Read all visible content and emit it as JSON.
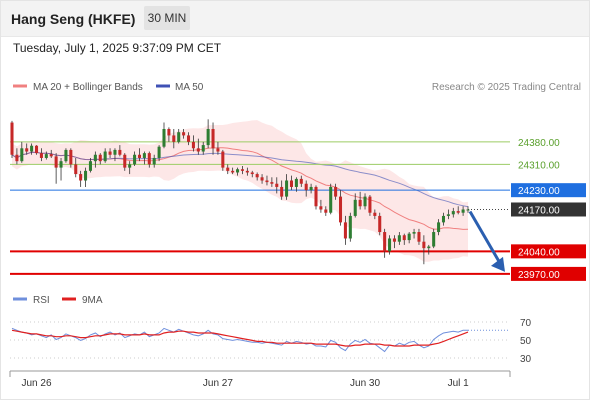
{
  "header": {
    "title": "Hang Seng (HKFE)",
    "interval": "30 MIN",
    "timestamp": "Tuesday, July 1, 2025 9:37:09 PM CET"
  },
  "legend": {
    "ma20_label": "MA 20 + Bollinger Bands",
    "ma50_label": "MA 50",
    "credit": "Research © 2025 Trading Central",
    "rsi_label": "RSI",
    "rsi_ma_label": "9MA"
  },
  "colors": {
    "up_candle": "#2e7d32",
    "down_candle": "#c62828",
    "ma20": "#f08080",
    "ma50": "#3f51b5",
    "band_fill": "#fde3e3",
    "support": "#e00000",
    "pivot": "#1f6fe0",
    "resistance": "#9ccc65",
    "last_price_bg": "#333333",
    "arrow": "#2b5fb0",
    "rsi": "#6f8fdc",
    "rsi_ma": "#e02020"
  },
  "chart_data": {
    "type": "candlestick",
    "x_labels": [
      "Jun 26",
      "Jun 27",
      "Jun 30",
      "Jul 1"
    ],
    "y_range": [
      23920,
      24510
    ],
    "grid": false,
    "legend_position": "top-left",
    "levels": [
      {
        "value": 24380,
        "label": "24380.00",
        "kind": "resistance"
      },
      {
        "value": 24310,
        "label": "24310.00",
        "kind": "resistance"
      },
      {
        "value": 24230,
        "label": "24230.00",
        "kind": "pivot"
      },
      {
        "value": 24170,
        "label": "24170.00",
        "kind": "last"
      },
      {
        "value": 24040,
        "label": "24040.00",
        "kind": "support"
      },
      {
        "value": 23970,
        "label": "23970.00",
        "kind": "support"
      }
    ],
    "ohlc": [
      [
        24440,
        24445,
        24330,
        24340
      ],
      [
        24340,
        24360,
        24310,
        24320
      ],
      [
        24320,
        24380,
        24315,
        24360
      ],
      [
        24360,
        24375,
        24340,
        24350
      ],
      [
        24350,
        24375,
        24340,
        24368
      ],
      [
        24368,
        24370,
        24340,
        24345
      ],
      [
        24345,
        24360,
        24320,
        24330
      ],
      [
        24330,
        24350,
        24325,
        24342
      ],
      [
        24342,
        24355,
        24330,
        24335
      ],
      [
        24335,
        24345,
        24250,
        24300
      ],
      [
        24300,
        24330,
        24260,
        24320
      ],
      [
        24320,
        24360,
        24315,
        24355
      ],
      [
        24355,
        24360,
        24300,
        24310
      ],
      [
        24310,
        24330,
        24270,
        24280
      ],
      [
        24280,
        24290,
        24240,
        24260
      ],
      [
        24260,
        24300,
        24240,
        24290
      ],
      [
        24290,
        24330,
        24285,
        24320
      ],
      [
        24320,
        24350,
        24300,
        24340
      ],
      [
        24340,
        24345,
        24310,
        24320
      ],
      [
        24320,
        24360,
        24315,
        24350
      ],
      [
        24350,
        24360,
        24330,
        24340
      ],
      [
        24340,
        24360,
        24320,
        24355
      ],
      [
        24355,
        24370,
        24335,
        24340
      ],
      [
        24340,
        24345,
        24290,
        24300
      ],
      [
        24300,
        24320,
        24280,
        24310
      ],
      [
        24310,
        24350,
        24305,
        24340
      ],
      [
        24340,
        24360,
        24320,
        24330
      ],
      [
        24330,
        24350,
        24310,
        24345
      ],
      [
        24345,
        24350,
        24300,
        24310
      ],
      [
        24310,
        24340,
        24300,
        24330
      ],
      [
        24330,
        24370,
        24320,
        24365
      ],
      [
        24365,
        24440,
        24360,
        24420
      ],
      [
        24420,
        24425,
        24380,
        24400
      ],
      [
        24400,
        24420,
        24360,
        24380
      ],
      [
        24380,
        24420,
        24375,
        24410
      ],
      [
        24410,
        24420,
        24390,
        24400
      ],
      [
        24400,
        24410,
        24370,
        24380
      ],
      [
        24380,
        24400,
        24350,
        24360
      ],
      [
        24360,
        24390,
        24340,
        24350
      ],
      [
        24350,
        24380,
        24340,
        24370
      ],
      [
        24370,
        24450,
        24360,
        24420
      ],
      [
        24420,
        24440,
        24340,
        24360
      ],
      [
        24360,
        24380,
        24340,
        24350
      ],
      [
        24350,
        24355,
        24290,
        24300
      ],
      [
        24300,
        24310,
        24280,
        24290
      ],
      [
        24290,
        24300,
        24280,
        24285
      ],
      [
        24285,
        24300,
        24275,
        24295
      ],
      [
        24295,
        24305,
        24280,
        24290
      ],
      [
        24290,
        24300,
        24275,
        24285
      ],
      [
        24285,
        24290,
        24270,
        24280
      ],
      [
        24280,
        24285,
        24260,
        24270
      ],
      [
        24270,
        24280,
        24250,
        24260
      ],
      [
        24260,
        24275,
        24245,
        24255
      ],
      [
        24255,
        24270,
        24240,
        24250
      ],
      [
        24250,
        24270,
        24220,
        24240
      ],
      [
        24240,
        24260,
        24200,
        24210
      ],
      [
        24210,
        24280,
        24200,
        24260
      ],
      [
        24260,
        24275,
        24230,
        24240
      ],
      [
        24240,
        24270,
        24225,
        24265
      ],
      [
        24265,
        24275,
        24240,
        24250
      ],
      [
        24250,
        24260,
        24210,
        24230
      ],
      [
        24230,
        24250,
        24220,
        24240
      ],
      [
        24240,
        24245,
        24170,
        24180
      ],
      [
        24180,
        24200,
        24160,
        24170
      ],
      [
        24170,
        24180,
        24150,
        24160
      ],
      [
        24160,
        24250,
        24155,
        24240
      ],
      [
        24240,
        24250,
        24200,
        24210
      ],
      [
        24210,
        24230,
        24120,
        24130
      ],
      [
        24130,
        24150,
        24060,
        24080
      ],
      [
        24080,
        24160,
        24070,
        24150
      ],
      [
        24150,
        24220,
        24145,
        24200
      ],
      [
        24200,
        24225,
        24170,
        24180
      ],
      [
        24180,
        24220,
        24170,
        24210
      ],
      [
        24210,
        24215,
        24150,
        24160
      ],
      [
        24160,
        24170,
        24140,
        24150
      ],
      [
        24150,
        24160,
        24090,
        24100
      ],
      [
        24100,
        24110,
        24020,
        24040
      ],
      [
        24040,
        24090,
        24030,
        24080
      ],
      [
        24080,
        24090,
        24050,
        24070
      ],
      [
        24070,
        24100,
        24060,
        24090
      ],
      [
        24090,
        24095,
        24060,
        24075
      ],
      [
        24075,
        24100,
        24065,
        24095
      ],
      [
        24095,
        24110,
        24080,
        24100
      ],
      [
        24100,
        24110,
        24060,
        24070
      ],
      [
        24070,
        24090,
        24000,
        24050
      ],
      [
        24050,
        24060,
        24030,
        24055
      ],
      [
        24055,
        24110,
        24050,
        24100
      ],
      [
        24100,
        24140,
        24090,
        24130
      ],
      [
        24130,
        24160,
        24120,
        24150
      ],
      [
        24150,
        24170,
        24140,
        24155
      ],
      [
        24155,
        24175,
        24145,
        24165
      ],
      [
        24165,
        24180,
        24155,
        24160
      ],
      [
        24160,
        24180,
        24150,
        24170
      ],
      [
        24170,
        24180,
        24160,
        24170
      ]
    ],
    "rsi": [
      62,
      60,
      58,
      57,
      55,
      56,
      54,
      52,
      55,
      50,
      52,
      56,
      54,
      52,
      49,
      51,
      55,
      57,
      53,
      56,
      58,
      55,
      57,
      52,
      54,
      56,
      55,
      58,
      53,
      55,
      57,
      62,
      60,
      58,
      61,
      59,
      57,
      55,
      54,
      56,
      60,
      56,
      55,
      51,
      50,
      49,
      50,
      49,
      48,
      47,
      47,
      46,
      47,
      46,
      45,
      44,
      48,
      46,
      48,
      47,
      45,
      46,
      43,
      43,
      42,
      49,
      47,
      41,
      38,
      45,
      49,
      47,
      50,
      46,
      45,
      41,
      37,
      44,
      43,
      46,
      44,
      47,
      48,
      44,
      41,
      43,
      50,
      54,
      57,
      58,
      59,
      58,
      60,
      60
    ],
    "rsi_ma": [
      60,
      59,
      58,
      57,
      56,
      56,
      55,
      54,
      54,
      53,
      53,
      54,
      54,
      53,
      52,
      52,
      53,
      54,
      54,
      55,
      56,
      56,
      56,
      55,
      55,
      55,
      55,
      56,
      55,
      55,
      55,
      57,
      58,
      58,
      59,
      59,
      58,
      58,
      57,
      57,
      57,
      57,
      56,
      55,
      54,
      53,
      52,
      51,
      50,
      49,
      48,
      48,
      47,
      47,
      46,
      46,
      46,
      46,
      46,
      46,
      46,
      46,
      45,
      45,
      45,
      45,
      45,
      44,
      43,
      43,
      44,
      44,
      45,
      45,
      45,
      45,
      44,
      44,
      43,
      43,
      43,
      43,
      44,
      44,
      44,
      44,
      45,
      46,
      48,
      50,
      52,
      54,
      56,
      58
    ],
    "rsi_ticks": [
      70,
      50,
      30
    ],
    "rsi_range": [
      20,
      80
    ]
  }
}
